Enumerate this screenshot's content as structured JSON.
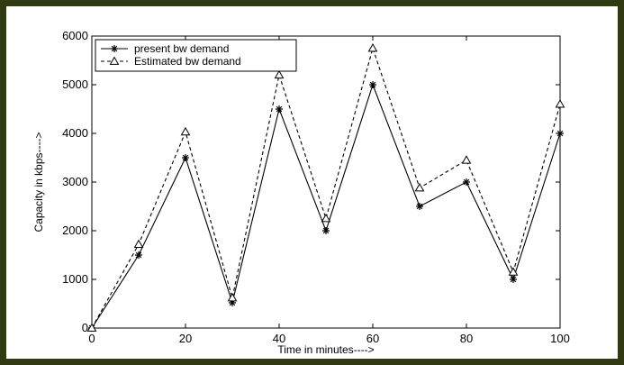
{
  "chart_data": {
    "type": "line",
    "title": "",
    "xlabel": "Time in minutes---->",
    "ylabel": "Capacity in kbps---->",
    "xlim": [
      0,
      100
    ],
    "ylim": [
      0,
      6000
    ],
    "xticks": [
      0,
      20,
      40,
      60,
      80,
      100
    ],
    "yticks": [
      0,
      1000,
      2000,
      3000,
      4000,
      5000,
      6000
    ],
    "grid": false,
    "legend_position": "top-left",
    "x": [
      0,
      10,
      20,
      30,
      40,
      50,
      60,
      70,
      80,
      90,
      100
    ],
    "series": [
      {
        "name": "present bw demand",
        "line_style": "solid",
        "marker": "asterisk",
        "values": [
          0,
          1500,
          3500,
          520,
          4500,
          2000,
          5000,
          2500,
          3000,
          1000,
          4000
        ]
      },
      {
        "name": "Estimated bw demand",
        "line_style": "dashed",
        "marker": "triangle",
        "values": [
          0,
          1720,
          4030,
          620,
          5200,
          2250,
          5750,
          2880,
          3450,
          1150,
          4600
        ]
      }
    ]
  },
  "colors": {
    "frame": "#2f3a12",
    "ink": "#000000",
    "background": "#ffffff"
  }
}
